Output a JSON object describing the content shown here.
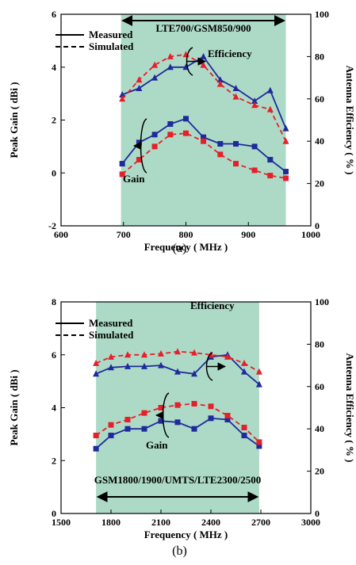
{
  "chart_data": [
    {
      "type": "line",
      "caption": "(a)",
      "xlabel": "Frequency ( MHz )",
      "ylabel": "Peak Gain ( dBi )",
      "y2label": "Antenna Efficiency ( % )",
      "xlim": [
        600,
        1000
      ],
      "ylim": [
        -2,
        6
      ],
      "y2lim": [
        0,
        100
      ],
      "xticks": [
        600,
        700,
        800,
        900,
        1000
      ],
      "yticks": [
        -2,
        0,
        2,
        4,
        6
      ],
      "y2ticks": [
        0,
        20,
        40,
        60,
        80,
        100
      ],
      "band": {
        "label": "LTE700/GSM850/900",
        "range": [
          696,
          960
        ],
        "color": "#9fd3bd"
      },
      "legend": [
        "Measured",
        "Simulated"
      ],
      "annotations": {
        "efficiency": "Efficiency",
        "gain": "Gain"
      },
      "x": [
        698,
        725,
        750,
        775,
        800,
        828,
        855,
        880,
        910,
        935,
        960
      ],
      "series": [
        {
          "name": "Measured",
          "quantity": "Peak Gain",
          "axis": "left",
          "style": "solid",
          "marker": "square",
          "color": "#1f2a9c",
          "values": [
            0.35,
            1.15,
            1.45,
            1.85,
            2.05,
            1.35,
            1.1,
            1.1,
            1.0,
            0.5,
            0.05
          ]
        },
        {
          "name": "Simulated",
          "quantity": "Peak Gain",
          "axis": "left",
          "style": "dashed",
          "marker": "square",
          "color": "#e5202a",
          "values": [
            -0.05,
            0.5,
            1.0,
            1.45,
            1.5,
            1.2,
            0.7,
            0.35,
            0.1,
            -0.1,
            -0.2
          ]
        },
        {
          "name": "Measured",
          "quantity": "Antenna Efficiency",
          "axis": "right",
          "style": "solid",
          "marker": "triangle",
          "color": "#1f2a9c",
          "values": [
            62,
            65,
            70,
            75,
            75,
            80,
            69,
            65,
            59,
            64,
            46
          ]
        },
        {
          "name": "Simulated",
          "quantity": "Antenna Efficiency",
          "axis": "right",
          "style": "dashed",
          "marker": "triangle",
          "color": "#e5202a",
          "values": [
            60,
            69,
            76,
            80,
            81,
            76,
            67,
            61,
            57,
            55,
            40
          ]
        }
      ]
    },
    {
      "type": "line",
      "caption": "(b)",
      "xlabel": "Frequency ( MHz )",
      "ylabel": "Peak Gain ( dBi )",
      "y2label": "Antenna Efficiency ( % )",
      "xlim": [
        1500,
        3000
      ],
      "ylim": [
        0,
        8
      ],
      "y2lim": [
        0,
        100
      ],
      "xticks": [
        1500,
        1800,
        2100,
        2400,
        2700,
        3000
      ],
      "yticks": [
        0,
        2,
        4,
        6,
        8
      ],
      "y2ticks": [
        0,
        20,
        40,
        60,
        80,
        100
      ],
      "band": {
        "label": "GSM1800/1900/UMTS/LTE2300/2500",
        "range": [
          1710,
          2690
        ],
        "color": "#9fd3bd"
      },
      "legend": [
        "Measured",
        "Simulated"
      ],
      "annotations": {
        "efficiency": "Efficiency",
        "gain": "Gain"
      },
      "x": [
        1710,
        1800,
        1900,
        2000,
        2100,
        2200,
        2300,
        2400,
        2500,
        2600,
        2690
      ],
      "series": [
        {
          "name": "Measured",
          "quantity": "Peak Gain",
          "axis": "left",
          "style": "solid",
          "marker": "square",
          "color": "#1f2a9c",
          "values": [
            2.45,
            2.95,
            3.2,
            3.2,
            3.5,
            3.45,
            3.2,
            3.6,
            3.55,
            2.95,
            2.55
          ]
        },
        {
          "name": "Simulated",
          "quantity": "Peak Gain",
          "axis": "left",
          "style": "dashed",
          "marker": "square",
          "color": "#e5202a",
          "values": [
            2.95,
            3.35,
            3.55,
            3.8,
            4.0,
            4.1,
            4.15,
            4.05,
            3.7,
            3.25,
            2.7
          ]
        },
        {
          "name": "Measured",
          "quantity": "Antenna Efficiency",
          "axis": "right",
          "style": "solid",
          "marker": "triangle",
          "color": "#1f2a9c",
          "values": [
            66,
            69,
            69.5,
            69.5,
            70,
            67,
            66,
            74,
            75,
            67,
            61
          ]
        },
        {
          "name": "Simulated",
          "quantity": "Antenna Efficiency",
          "axis": "right",
          "style": "dashed",
          "marker": "triangle",
          "color": "#e5202a",
          "values": [
            71,
            74,
            75,
            75,
            75.5,
            76.5,
            76,
            75,
            74,
            71,
            67
          ]
        }
      ]
    }
  ]
}
